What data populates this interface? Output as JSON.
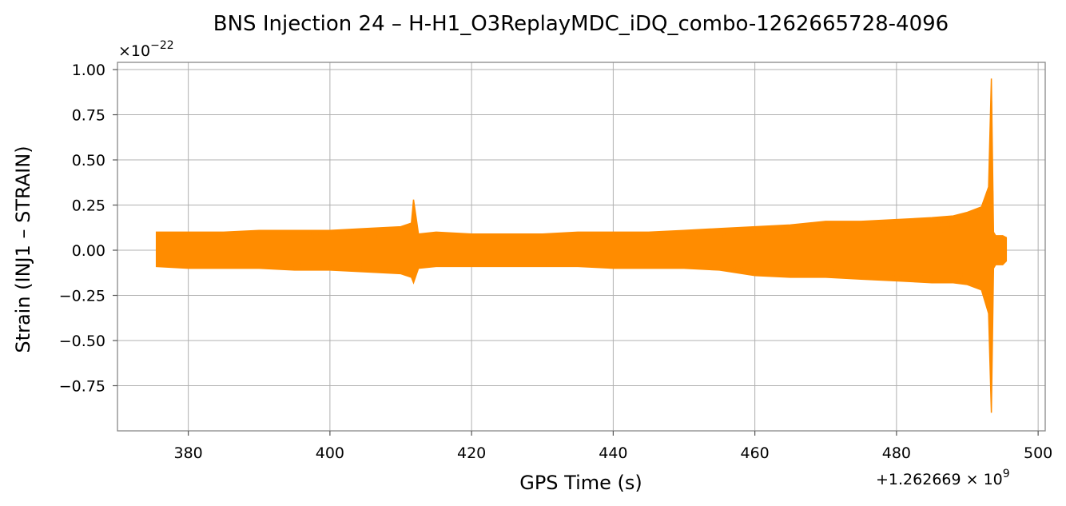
{
  "chart_data": {
    "type": "line",
    "title": "BNS Injection 24 – H-H1_O3ReplayMDC_iDQ_combo-1262665728-4096",
    "xlabel": "GPS Time (s)",
    "ylabel": "Strain (INJ1 – STRAIN)",
    "x_offset_label": "+1.262669 × 10",
    "x_offset_exponent": "9",
    "y_multiplier_label": "×10",
    "y_multiplier_exponent": "−22",
    "xlim": [
      370,
      501
    ],
    "ylim": [
      -1.0,
      1.04
    ],
    "xticks": [
      380,
      400,
      420,
      440,
      460,
      480,
      500
    ],
    "xtick_labels": [
      "380",
      "400",
      "420",
      "440",
      "460",
      "480",
      "500"
    ],
    "yticks": [
      1.0,
      0.75,
      0.5,
      0.25,
      0.0,
      -0.25,
      -0.5,
      -0.75
    ],
    "ytick_labels": [
      "1.00",
      "0.75",
      "0.50",
      "0.25",
      "0.00",
      "−0.25",
      "−0.50",
      "−0.75"
    ],
    "grid": true,
    "series": [
      {
        "color": "#ff8c00",
        "x": [
          375.5,
          380,
          385,
          390,
          395,
          400,
          405,
          410,
          411.5,
          411.8,
          412.5,
          415,
          420,
          425,
          430,
          435,
          440,
          445,
          450,
          455,
          460,
          465,
          470,
          475,
          480,
          485,
          488,
          490,
          492,
          493,
          493.4,
          493.7,
          494,
          495,
          495.5
        ],
        "upper": [
          0.1,
          0.1,
          0.1,
          0.11,
          0.11,
          0.11,
          0.12,
          0.13,
          0.15,
          0.28,
          0.09,
          0.1,
          0.09,
          0.09,
          0.09,
          0.1,
          0.1,
          0.1,
          0.11,
          0.12,
          0.13,
          0.14,
          0.16,
          0.16,
          0.17,
          0.18,
          0.19,
          0.21,
          0.24,
          0.35,
          0.95,
          0.1,
          0.08,
          0.08,
          0.07
        ],
        "lower": [
          -0.09,
          -0.1,
          -0.1,
          -0.1,
          -0.11,
          -0.11,
          -0.12,
          -0.13,
          -0.15,
          -0.18,
          -0.1,
          -0.09,
          -0.09,
          -0.09,
          -0.09,
          -0.09,
          -0.1,
          -0.1,
          -0.1,
          -0.11,
          -0.14,
          -0.15,
          -0.15,
          -0.16,
          -0.17,
          -0.18,
          -0.18,
          -0.19,
          -0.22,
          -0.35,
          -0.9,
          -0.1,
          -0.08,
          -0.08,
          -0.06
        ]
      }
    ]
  }
}
